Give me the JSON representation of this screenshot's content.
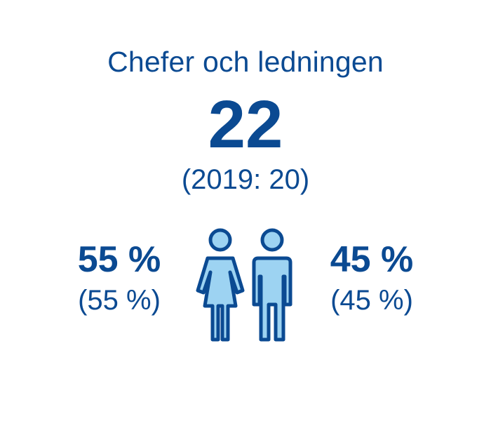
{
  "title": "Chefer och ledningen",
  "count": "22",
  "previous": "(2019: 20)",
  "female": {
    "percent": "55 %",
    "previous_percent": "(55 %)",
    "icon": "woman-icon"
  },
  "male": {
    "percent": "45 %",
    "previous_percent": "(45 %)",
    "icon": "man-icon"
  },
  "colors": {
    "text": "#0b4a92",
    "icon_fill": "#9dd3f2",
    "icon_stroke": "#0b4a92",
    "background": "#ffffff"
  }
}
